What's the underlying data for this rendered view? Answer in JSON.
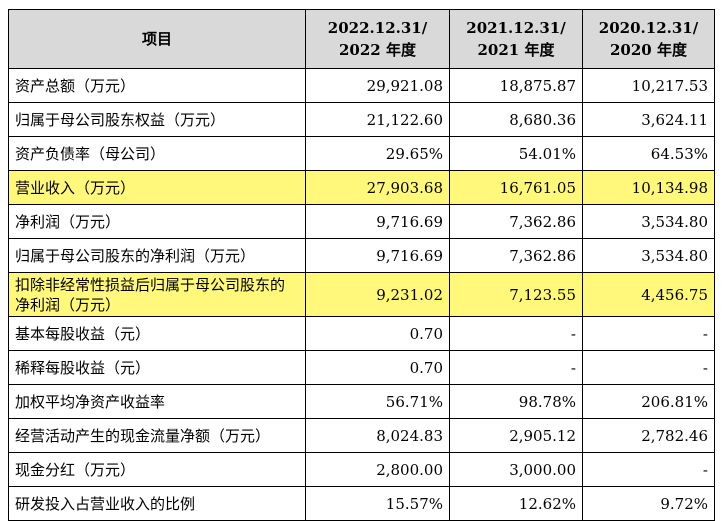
{
  "table": {
    "headers": [
      "项目",
      "2022.12.31/\n2022 年度",
      "2021.12.31/\n2021 年度",
      "2020.12.31/\n2020 年度"
    ],
    "header_lines": [
      [
        "项目"
      ],
      [
        "2022.12.31/",
        "2022 年度"
      ],
      [
        "2021.12.31/",
        "2021 年度"
      ],
      [
        "2020.12.31/",
        "2020 年度"
      ]
    ],
    "rows": [
      {
        "label": "资产总额（万元）",
        "values": [
          "29,921.08",
          "18,875.87",
          "10,217.53"
        ],
        "highlight": false
      },
      {
        "label": "归属于母公司股东权益（万元）",
        "values": [
          "21,122.60",
          "8,680.36",
          "3,624.11"
        ],
        "highlight": false
      },
      {
        "label": "资产负债率（母公司）",
        "values": [
          "29.65%",
          "54.01%",
          "64.53%"
        ],
        "highlight": false
      },
      {
        "label": "营业收入（万元）",
        "values": [
          "27,903.68",
          "16,761.05",
          "10,134.98"
        ],
        "highlight": true
      },
      {
        "label": "净利润（万元）",
        "values": [
          "9,716.69",
          "7,362.86",
          "3,534.80"
        ],
        "highlight": false
      },
      {
        "label": "归属于母公司股东的净利润（万元）",
        "values": [
          "9,716.69",
          "7,362.86",
          "3,534.80"
        ],
        "highlight": false
      },
      {
        "label": "扣除非经常性损益后归属于母公司股东的净利润（万元）",
        "values": [
          "9,231.02",
          "7,123.55",
          "4,456.75"
        ],
        "highlight": true,
        "tall": true
      },
      {
        "label": "基本每股收益（元）",
        "values": [
          "0.70",
          "-",
          "-"
        ],
        "highlight": false
      },
      {
        "label": "稀释每股收益（元）",
        "values": [
          "0.70",
          "-",
          "-"
        ],
        "highlight": false
      },
      {
        "label": "加权平均净资产收益率",
        "values": [
          "56.71%",
          "98.78%",
          "206.81%"
        ],
        "highlight": false
      },
      {
        "label": "经营活动产生的现金流量净额（万元）",
        "values": [
          "8,024.83",
          "2,905.12",
          "2,782.46"
        ],
        "highlight": false
      },
      {
        "label": "现金分红（万元）",
        "values": [
          "2,800.00",
          "3,000.00",
          "-"
        ],
        "highlight": false
      },
      {
        "label": "研发投入占营业收入的比例",
        "values": [
          "15.57%",
          "12.62%",
          "9.72%"
        ],
        "highlight": false
      }
    ]
  },
  "colors": {
    "header_bg": "#d9d9d9",
    "highlight": "#fff87a",
    "border": "#000000"
  }
}
